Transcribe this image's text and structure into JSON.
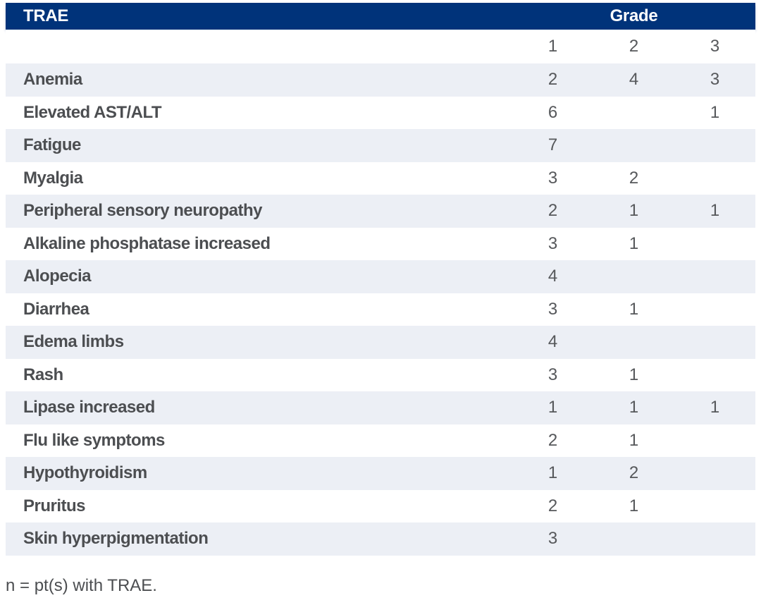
{
  "table": {
    "header": {
      "trae_label": "TRAE",
      "grade_label": "Grade"
    },
    "grade_levels": [
      "1",
      "2",
      "3"
    ],
    "rows": [
      {
        "name": "Anemia",
        "grade1": "2",
        "grade2": "4",
        "grade3": "3"
      },
      {
        "name": "Elevated AST/ALT",
        "grade1": "6",
        "grade2": "",
        "grade3": "1"
      },
      {
        "name": "Fatigue",
        "grade1": "7",
        "grade2": "",
        "grade3": ""
      },
      {
        "name": "Myalgia",
        "grade1": "3",
        "grade2": "2",
        "grade3": ""
      },
      {
        "name": "Peripheral sensory neuropathy",
        "grade1": "2",
        "grade2": "1",
        "grade3": "1"
      },
      {
        "name": "Alkaline phosphatase increased",
        "grade1": "3",
        "grade2": "1",
        "grade3": ""
      },
      {
        "name": "Alopecia",
        "grade1": "4",
        "grade2": "",
        "grade3": ""
      },
      {
        "name": "Diarrhea",
        "grade1": "3",
        "grade2": "1",
        "grade3": ""
      },
      {
        "name": "Edema limbs",
        "grade1": "4",
        "grade2": "",
        "grade3": ""
      },
      {
        "name": "Rash",
        "grade1": "3",
        "grade2": "1",
        "grade3": ""
      },
      {
        "name": "Lipase increased",
        "grade1": "1",
        "grade2": "1",
        "grade3": "1"
      },
      {
        "name": "Flu like symptoms",
        "grade1": "2",
        "grade2": "1",
        "grade3": ""
      },
      {
        "name": "Hypothyroidism",
        "grade1": "1",
        "grade2": "2",
        "grade3": ""
      },
      {
        "name": "Pruritus",
        "grade1": "2",
        "grade2": "1",
        "grade3": ""
      },
      {
        "name": "Skin hyperpigmentation",
        "grade1": "3",
        "grade2": "",
        "grade3": ""
      }
    ],
    "footnote": "n = pt(s) with TRAE."
  },
  "colors": {
    "header_bg": "#00337a",
    "header_text": "#ffffff",
    "stripe_bg": "#eceff5",
    "label_text": "#4c4e51",
    "number_text": "#56585b"
  }
}
